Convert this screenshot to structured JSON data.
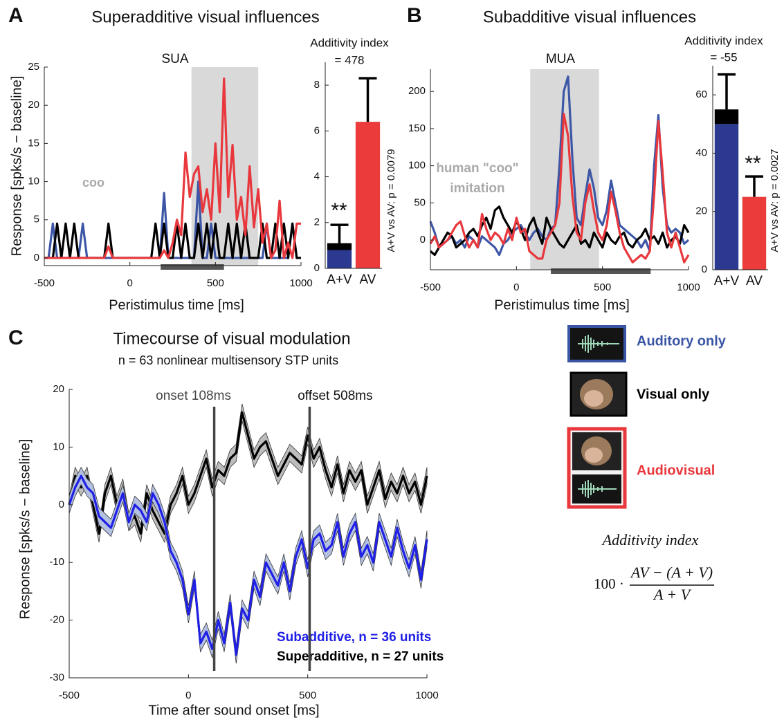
{
  "chart_data": [
    {
      "type": "line",
      "panel": "A",
      "title": "Superadditive visual influences",
      "subtitle": "SUA",
      "annotation": "coo",
      "xlabel": "Peristimulus time [ms]",
      "ylabel": "Response [spks/s − baseline]",
      "xlim": [
        -500,
        1000
      ],
      "ylim": [
        -1,
        25
      ],
      "xticks": [
        -500,
        0,
        500,
        1000
      ],
      "yticks": [
        0,
        5,
        10,
        15,
        20,
        25
      ],
      "shaded_span": [
        360,
        750
      ],
      "shade_color": "#d9d9d9",
      "stimulus_bar": [
        180,
        550
      ],
      "stimulus_color": "#555555",
      "x": [
        -500,
        -475,
        -450,
        -425,
        -400,
        -375,
        -350,
        -325,
        -300,
        -275,
        -250,
        -225,
        -200,
        -175,
        -150,
        -125,
        -100,
        -75,
        -50,
        -25,
        0,
        25,
        50,
        75,
        100,
        125,
        150,
        175,
        200,
        225,
        250,
        275,
        300,
        325,
        350,
        375,
        400,
        425,
        450,
        475,
        500,
        525,
        550,
        575,
        600,
        625,
        650,
        675,
        700,
        725,
        750,
        775,
        800,
        825,
        850,
        875,
        900,
        925,
        950,
        975,
        1000
      ],
      "series": [
        {
          "color": "#3d57a6",
          "values": [
            0,
            0,
            4.5,
            0,
            0,
            0,
            0,
            0,
            0,
            4.5,
            0,
            0,
            0,
            0,
            0,
            0,
            0,
            0,
            0,
            0,
            0,
            0,
            0,
            0,
            0,
            0,
            0,
            0,
            8.5,
            0,
            0,
            0,
            0,
            0,
            0,
            0,
            10,
            0,
            0,
            4.5,
            0,
            0,
            0,
            0,
            0,
            0,
            0,
            0,
            0,
            0,
            0,
            0,
            4.5,
            0,
            0,
            0,
            0,
            0,
            4.5,
            0,
            0
          ]
        },
        {
          "color": "#000000",
          "values": [
            0,
            0,
            0,
            4.5,
            0,
            4.5,
            0,
            4.5,
            0,
            0,
            0,
            0,
            0,
            0,
            0,
            4.5,
            0,
            0,
            0,
            0,
            0,
            0,
            0,
            0,
            0,
            0,
            4.5,
            0,
            4.5,
            0,
            0,
            4.5,
            0,
            4.5,
            0,
            0,
            4.5,
            0,
            4.5,
            0,
            4.5,
            0,
            0,
            4.5,
            0,
            4.5,
            0,
            4.5,
            0,
            0,
            0,
            4.5,
            0,
            0,
            4.5,
            0,
            4.5,
            0,
            4.5,
            0,
            0
          ]
        },
        {
          "color": "#e8383d",
          "values": [
            0,
            0,
            0,
            0,
            0,
            0,
            0,
            0,
            0,
            0,
            0,
            0,
            0,
            0,
            0,
            1.5,
            0,
            0,
            0,
            0,
            0,
            0,
            0,
            0,
            0,
            0,
            0,
            0,
            1,
            0,
            2,
            5,
            3,
            13.8,
            8,
            11,
            12,
            6,
            9,
            5,
            15,
            6,
            23.5,
            8,
            14.8,
            5,
            8,
            3,
            12,
            4,
            9,
            2,
            4.5,
            0,
            1,
            7.5,
            0,
            2,
            0,
            4.5,
            4.5
          ]
        }
      ]
    },
    {
      "type": "bar",
      "title": "Additivity index",
      "subtitle": "= 478",
      "annotation": "A+V vs AV: p = 0.0079",
      "significance": "**",
      "categories": [
        "A+V",
        "AV"
      ],
      "ylim": [
        0,
        9
      ],
      "yticks": [
        0,
        2,
        4,
        6,
        8
      ],
      "series": [
        {
          "color": "#2b3990",
          "values": [
            0.8,
            null
          ]
        },
        {
          "color": "#000000",
          "values": [
            0.3,
            null
          ],
          "errors": [
            0.8,
            null
          ]
        },
        {
          "color": "#ec3b3b",
          "values": [
            null,
            6.4
          ],
          "errors": [
            null,
            1.9
          ]
        }
      ]
    },
    {
      "type": "line",
      "panel": "B",
      "title": "Subadditive visual influences",
      "subtitle": "MUA",
      "annotation": [
        "human \"coo\"",
        "imitation"
      ],
      "xlabel": "Peristimulus time [ms]",
      "xlim": [
        -500,
        1000
      ],
      "ylim": [
        -40,
        230
      ],
      "xticks": [
        -500,
        0,
        500,
        1000
      ],
      "yticks": [
        0,
        50,
        100,
        150,
        200
      ],
      "shaded_span": [
        80,
        480
      ],
      "shade_color": "#d9d9d9",
      "stimulus_bar": [
        200,
        780
      ],
      "stimulus_color": "#555555",
      "x": [
        -500,
        -475,
        -450,
        -425,
        -400,
        -375,
        -350,
        -325,
        -300,
        -275,
        -250,
        -225,
        -200,
        -175,
        -150,
        -125,
        -100,
        -75,
        -50,
        -25,
        0,
        25,
        50,
        75,
        100,
        125,
        150,
        175,
        200,
        225,
        250,
        275,
        300,
        325,
        350,
        375,
        400,
        425,
        450,
        475,
        500,
        525,
        550,
        575,
        600,
        625,
        650,
        675,
        700,
        725,
        750,
        775,
        800,
        825,
        850,
        875,
        900,
        925,
        950,
        975,
        1000
      ],
      "series": [
        {
          "color": "#3d57a6",
          "values": [
            25,
            10,
            -10,
            -5,
            0,
            5,
            -5,
            0,
            -10,
            5,
            0,
            -10,
            5,
            0,
            -5,
            -10,
            -20,
            -5,
            0,
            10,
            15,
            20,
            10,
            0,
            10,
            15,
            5,
            0,
            15,
            20,
            100,
            200,
            220,
            110,
            30,
            20,
            60,
            95,
            70,
            30,
            20,
            40,
            80,
            50,
            20,
            15,
            10,
            5,
            0,
            -10,
            0,
            -15,
            100,
            168,
            70,
            20,
            10,
            15,
            10,
            -5,
            0
          ]
        },
        {
          "color": "#000000",
          "values": [
            -15,
            -20,
            -10,
            0,
            10,
            5,
            -10,
            -5,
            0,
            10,
            15,
            5,
            20,
            30,
            15,
            40,
            45,
            30,
            20,
            10,
            25,
            15,
            0,
            20,
            30,
            10,
            -5,
            30,
            15,
            5,
            -5,
            -10,
            0,
            10,
            20,
            -5,
            0,
            -10,
            10,
            0,
            -10,
            10,
            0,
            -5,
            5,
            10,
            -5,
            -10,
            0,
            5,
            15,
            0,
            5,
            -5,
            10,
            -10,
            0,
            5,
            -5,
            20,
            10
          ]
        },
        {
          "color": "#e8383d",
          "values": [
            -5,
            5,
            -10,
            -5,
            0,
            10,
            20,
            25,
            5,
            -10,
            0,
            -10,
            35,
            15,
            0,
            10,
            5,
            -5,
            15,
            0,
            30,
            10,
            15,
            -15,
            -20,
            -25,
            -25,
            0,
            10,
            20,
            50,
            170,
            140,
            60,
            10,
            0,
            50,
            75,
            40,
            10,
            0,
            20,
            65,
            40,
            10,
            -10,
            -20,
            -30,
            -25,
            -20,
            -25,
            -15,
            60,
            160,
            90,
            10,
            -10,
            10,
            -10,
            -30,
            -20
          ]
        }
      ]
    },
    {
      "type": "bar",
      "title": "Additivity index",
      "subtitle": "= -55",
      "annotation": "A+V vs AV: p = 0.0027",
      "significance": "**",
      "categories": [
        "A+V",
        "AV"
      ],
      "ylim": [
        0,
        70
      ],
      "yticks": [
        0,
        20,
        40,
        60
      ],
      "series": [
        {
          "color": "#2b3990",
          "values": [
            50,
            null
          ]
        },
        {
          "color": "#000000",
          "values": [
            5,
            null
          ],
          "errors": [
            12,
            null
          ]
        },
        {
          "color": "#ec3b3b",
          "values": [
            null,
            25
          ],
          "errors": [
            null,
            7
          ]
        }
      ]
    },
    {
      "type": "line",
      "panel": "C",
      "title": "Timecourse of visual modulation",
      "subtitle": "n = 63 nonlinear multisensory STP units",
      "xlabel": "Time after sound onset [ms]",
      "ylabel": "Response [spks/s − baseline]",
      "xlim": [
        -500,
        1000
      ],
      "ylim": [
        -30,
        20
      ],
      "xticks": [
        -500,
        0,
        500,
        1000
      ],
      "yticks": [
        -30,
        -20,
        -10,
        0,
        10,
        20
      ],
      "vlines": [
        {
          "value": 108,
          "label": "onset 108ms"
        },
        {
          "value": 508,
          "label": "offset 508ms"
        }
      ],
      "x": [
        -500,
        -475,
        -450,
        -425,
        -400,
        -375,
        -350,
        -325,
        -300,
        -275,
        -250,
        -225,
        -200,
        -175,
        -150,
        -125,
        -100,
        -75,
        -50,
        -25,
        0,
        25,
        50,
        75,
        100,
        125,
        150,
        175,
        200,
        225,
        250,
        275,
        300,
        325,
        350,
        375,
        400,
        425,
        450,
        475,
        500,
        525,
        550,
        575,
        600,
        625,
        650,
        675,
        700,
        725,
        750,
        775,
        800,
        825,
        850,
        875,
        900,
        925,
        950,
        975,
        1000
      ],
      "series": [
        {
          "name": "Superadditive, n = 27 units",
          "color": "#000000",
          "band_color": "#bdbdbd",
          "band": 1.5,
          "values": [
            0,
            5,
            3,
            5,
            0,
            -5,
            2,
            5,
            0,
            3,
            -3,
            -2,
            -5,
            2,
            -1,
            -3,
            -5,
            0,
            2,
            5,
            0,
            2,
            5,
            8,
            3,
            6,
            5,
            8,
            9,
            16,
            12,
            8,
            10,
            11,
            8,
            5,
            7,
            9,
            8,
            7,
            12,
            8,
            10,
            6,
            3,
            7,
            2,
            6,
            4,
            6,
            0,
            3,
            6,
            1,
            4,
            2,
            5,
            2,
            4,
            0,
            5
          ]
        },
        {
          "name": "Subadditive, n = 36 units",
          "color": "#1f1fe6",
          "band_color": "#b3c0e0",
          "band": 1.5,
          "values": [
            0,
            3,
            5,
            3,
            2,
            -2,
            -3,
            -4,
            -1,
            2,
            -3,
            0,
            -1,
            -3,
            2,
            0,
            -3,
            -8,
            -10,
            -13,
            -19,
            -13,
            -24,
            -22,
            -25,
            -20,
            -24,
            -17,
            -26,
            -18,
            -20,
            -13,
            -16,
            -10,
            -12,
            -14,
            -10,
            -15,
            -9,
            -6,
            -11,
            -6,
            -5,
            -8,
            -7,
            -3,
            -9,
            -5,
            -3,
            -9,
            -7,
            -10,
            -3,
            -6,
            -9,
            -4,
            -8,
            -11,
            -7,
            -13,
            -6
          ]
        }
      ]
    }
  ],
  "legend": {
    "items": [
      {
        "label": "Auditory only",
        "color": "#3a55a4"
      },
      {
        "label": "Visual only",
        "color": "#000000"
      },
      {
        "label": "Audiovisual",
        "color": "#e8383d"
      }
    ]
  },
  "formula": {
    "title": "Additivity index",
    "factor": "100 ·",
    "numerator": "AV − (A + V)",
    "denominator": "A + V"
  }
}
